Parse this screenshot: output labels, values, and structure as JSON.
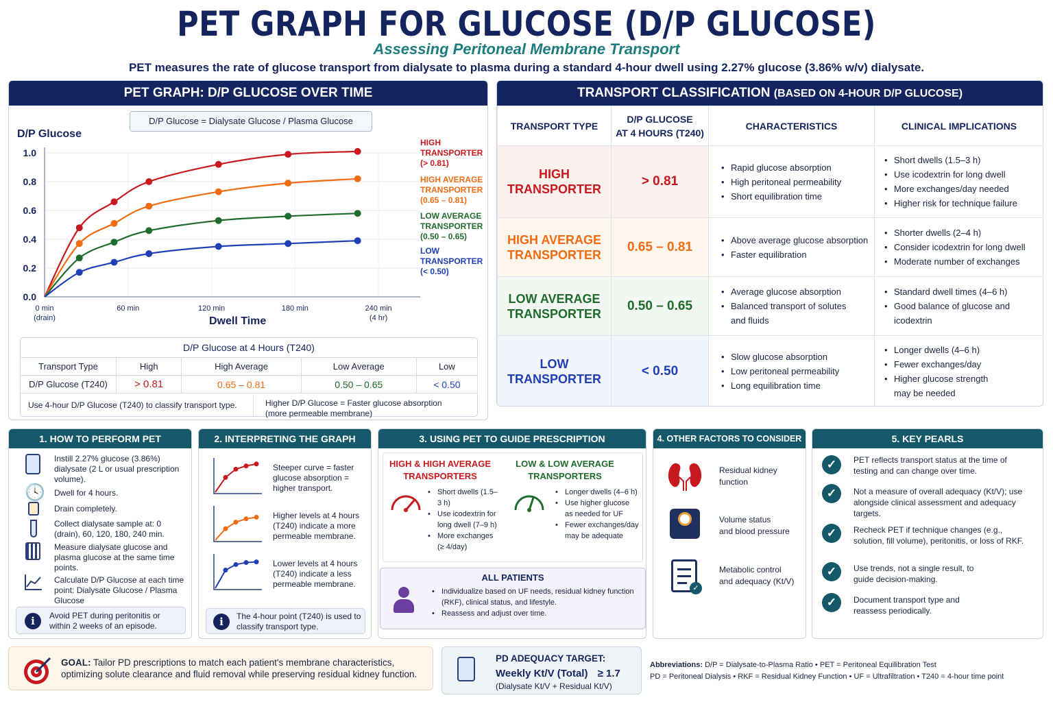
{
  "header": {
    "title": "PET GRAPH FOR GLUCOSE (D/P GLUCOSE)",
    "subtitle": "Assessing Peritoneal Membrane Transport",
    "intro": "PET measures the rate of glucose transport from dialysate to plasma during a standard 4-hour dwell using 2.27% glucose (3.86% w/v) dialysate."
  },
  "graph_panel": {
    "heading": "PET GRAPH: D/P GLUCOSE OVER TIME",
    "formula": "D/P Glucose  =  Dialysate Glucose / Plasma Glucose",
    "ylabel": "D/P Glucose",
    "xlabel": "Dwell Time",
    "yticks": [
      "1.0",
      "0.8",
      "0.6",
      "0.4",
      "0.2",
      "0.0"
    ],
    "xticks": [
      {
        "l1": "0 min",
        "l2": "(drain)"
      },
      {
        "l1": "60 min",
        "l2": ""
      },
      {
        "l1": "120 min",
        "l2": ""
      },
      {
        "l1": "180 min",
        "l2": ""
      },
      {
        "l1": "240 min",
        "l2": "(4 hr)"
      }
    ],
    "legend": [
      {
        "l1": "HIGH",
        "l2": "TRANSPORTER",
        "l3": "(> 0.81)",
        "color": "#c8191e"
      },
      {
        "l1": "HIGH AVERAGE",
        "l2": "TRANSPORTER",
        "l3": "(0.65 – 0.81)",
        "color": "#ef6c12"
      },
      {
        "l1": "LOW AVERAGE",
        "l2": "TRANSPORTER",
        "l3": "(0.50 – 0.65)",
        "color": "#1f6b2c"
      },
      {
        "l1": "LOW",
        "l2": "TRANSPORTER",
        "l3": "(< 0.50)",
        "color": "#1f3fb5"
      }
    ],
    "summary": {
      "title": "D/P Glucose at 4 Hours (T240)",
      "row1": [
        "Transport Type",
        "High",
        "High Average",
        "Low Average",
        "Low"
      ],
      "row2": [
        "D/P Glucose (T240)",
        "> 0.81",
        "0.65  –  0.81",
        "0.50  –  0.65",
        "< 0.50"
      ],
      "note_left": "Use 4-hour D/P Glucose (T240) to classify transport type.",
      "note_right_1": "Higher D/P Glucose = Faster glucose absorption",
      "note_right_2": "(more permeable membrane)"
    }
  },
  "chart_data": {
    "type": "line",
    "ylabel": "D/P Glucose",
    "xlabel": "Dwell Time",
    "xlim": [
      0,
      270
    ],
    "ylim": [
      0,
      1.0
    ],
    "x_markers": [
      25,
      50,
      75,
      125,
      175,
      225
    ],
    "series": [
      {
        "name": "HIGH TRANSPORTER (> 0.81)",
        "color": "#c8191e",
        "x": [
          0,
          25,
          50,
          75,
          125,
          175,
          225
        ],
        "y": [
          0,
          0.48,
          0.66,
          0.8,
          0.92,
          0.99,
          1.01
        ]
      },
      {
        "name": "HIGH AVERAGE TRANSPORTER (0.65 – 0.81)",
        "color": "#ef6c12",
        "x": [
          0,
          25,
          50,
          75,
          125,
          175,
          225
        ],
        "y": [
          0,
          0.37,
          0.51,
          0.63,
          0.73,
          0.79,
          0.82
        ]
      },
      {
        "name": "LOW AVERAGE TRANSPORTER (0.50 – 0.65)",
        "color": "#1f6b2c",
        "x": [
          0,
          25,
          50,
          75,
          125,
          175,
          225
        ],
        "y": [
          0,
          0.27,
          0.38,
          0.46,
          0.53,
          0.56,
          0.58
        ]
      },
      {
        "name": "LOW TRANSPORTER (< 0.50)",
        "color": "#1f3fb5",
        "x": [
          0,
          25,
          50,
          75,
          125,
          175,
          225
        ],
        "y": [
          0,
          0.17,
          0.24,
          0.3,
          0.35,
          0.37,
          0.39
        ]
      }
    ]
  },
  "classification": {
    "heading": "TRANSPORT CLASSIFICATION",
    "heading_suffix": "(BASED ON 4-HOUR D/P GLUCOSE)",
    "columns": [
      "TRANSPORT TYPE",
      "D/P GLUCOSE",
      "AT 4 HOURS (T240)",
      "CHARACTERISTICS",
      "CLINICAL IMPLICATIONS"
    ],
    "rows": [
      {
        "t1": "HIGH",
        "t2": "TRANSPORTER",
        "value": "> 0.81",
        "color": "#c8191e",
        "bg": "#fdf1f0",
        "chars": [
          "Rapid glucose absorption",
          "High peritoneal permeability",
          "Short equilibration time"
        ],
        "impl": [
          "Short dwells (1.5–3 h)",
          "Use icodextrin for long dwell",
          "More exchanges/day needed",
          "Higher risk for technique failure"
        ]
      },
      {
        "t1": "HIGH AVERAGE",
        "t2": "TRANSPORTER",
        "value": "0.65 – 0.81",
        "color": "#ef6c12",
        "bg": "#fef5ec",
        "chars": [
          "Above average glucose absorption",
          "Faster equilibration"
        ],
        "impl": [
          "Shorter dwells (2–4 h)",
          "Consider icodextrin for long dwell",
          "Moderate number of exchanges"
        ]
      },
      {
        "t1": "LOW AVERAGE",
        "t2": "TRANSPORTER",
        "value": "0.50 – 0.65",
        "color": "#1f6b2c",
        "bg": "#f2f8f1",
        "chars": [
          "Average glucose absorption",
          "Balanced transport of solutes",
          "and fluids"
        ],
        "impl": [
          "Standard dwell times (4–6 h)",
          "Good balance of glucose and",
          "icodextrin"
        ]
      },
      {
        "t1": "LOW",
        "t2": "TRANSPORTER",
        "value": "< 0.50",
        "color": "#1f3fb5",
        "bg": "#f2f5fc",
        "chars": [
          "Slow glucose absorption",
          "Low peritoneal permeability",
          "Long equilibration time"
        ],
        "impl": [
          "Longer dwells (4–6 h)",
          "Fewer exchanges/day",
          "Higher glucose strength",
          "may be needed"
        ]
      }
    ]
  },
  "perform": {
    "heading": "1. HOW TO PERFORM PET",
    "steps": [
      "Instill 2.27% glucose (3.86%) dialysate (2 L or usual prescription volume).",
      "Dwell for 4 hours.",
      "Drain completely.",
      "Collect dialysate sample at: 0 (drain), 60, 120, 180, 240 min.",
      "Measure dialysate glucose and plasma glucose at the same time points.",
      "Calculate D/P Glucose at each time point:  Dialysate Glucose / Plasma Glucose"
    ],
    "note": "Avoid PET during peritonitis or within 2 weeks of an episode."
  },
  "interpret": {
    "heading": "2. INTERPRETING THE GRAPH",
    "items": [
      {
        "text": "Steeper curve = faster glucose absorption = higher transport.",
        "color": "#c8191e"
      },
      {
        "text": "Higher levels at 4 hours (T240) indicate a more permeable membrane.",
        "color": "#ef6c12"
      },
      {
        "text": "Lower levels at 4 hours (T240) indicate a less permeable membrane.",
        "color": "#1f3fb5"
      }
    ],
    "note": "The 4-hour point (T240) is used to classify transport type."
  },
  "prescription": {
    "heading": "3. USING PET TO GUIDE PRESCRIPTION",
    "high_title_1": "HIGH & HIGH AVERAGE",
    "high_title_2": "TRANSPORTERS",
    "high_items": [
      "Short dwells (1.5–3 h)",
      "Use icodextrin for long dwell (7–9 h)",
      "More exchanges (≥ 4/day)"
    ],
    "low_title_1": "LOW & LOW AVERAGE",
    "low_title_2": "TRANSPORTERS",
    "low_items": [
      "Longer dwells (4–6 h)",
      "Use higher glucose as needed for UF",
      "Fewer exchanges/day may be adequate"
    ],
    "all_title": "ALL PATIENTS",
    "all_items": [
      "Individualize based on UF needs, residual kidney function (RKF), clinical status, and lifestyle.",
      "Reassess and adjust over time."
    ]
  },
  "factors": {
    "heading": "4. OTHER FACTORS TO CONSIDER",
    "items": [
      {
        "l1": "Residual kidney",
        "l2": "function"
      },
      {
        "l1": "Volume status",
        "l2": "and blood pressure"
      },
      {
        "l1": "Metabolic control",
        "l2": "and adequacy (Kt/V)"
      }
    ]
  },
  "pearls": {
    "heading": "5. KEY PEARLS",
    "items": [
      "PET reflects transport status at the time of testing and can change over time.",
      "Not a measure of overall adequacy (Kt/V); use alongside clinical assessment and adequacy targets.",
      "Recheck PET if technique changes (e.g., solution, fill volume), peritonitis, or loss of RKF.",
      "Use trends, not a single result, to guide decision-making.",
      "Document transport type and reassess periodically."
    ]
  },
  "goal": {
    "label": "GOAL:",
    "text_1": "Tailor PD prescriptions to match each patient's membrane characteristics,",
    "text_2": "optimizing solute clearance and fluid removal while preserving residual kidney function."
  },
  "adequacy": {
    "title": "PD ADEQUACY TARGET:",
    "line": "Weekly Kt/V (Total)",
    "target": "≥ 1.7",
    "sub": "(Dialysate Kt/V + Residual Kt/V)"
  },
  "abbrev": {
    "label": "Abbreviations:",
    "line1": "D/P = Dialysate-to-Plasma Ratio   •   PET = Peritoneal Equilibration Test",
    "line2": "PD = Peritoneal Dialysis   •   RKF = Residual Kidney Function   •   UF = Ultrafiltration   •   T240 = 4-hour time point"
  }
}
